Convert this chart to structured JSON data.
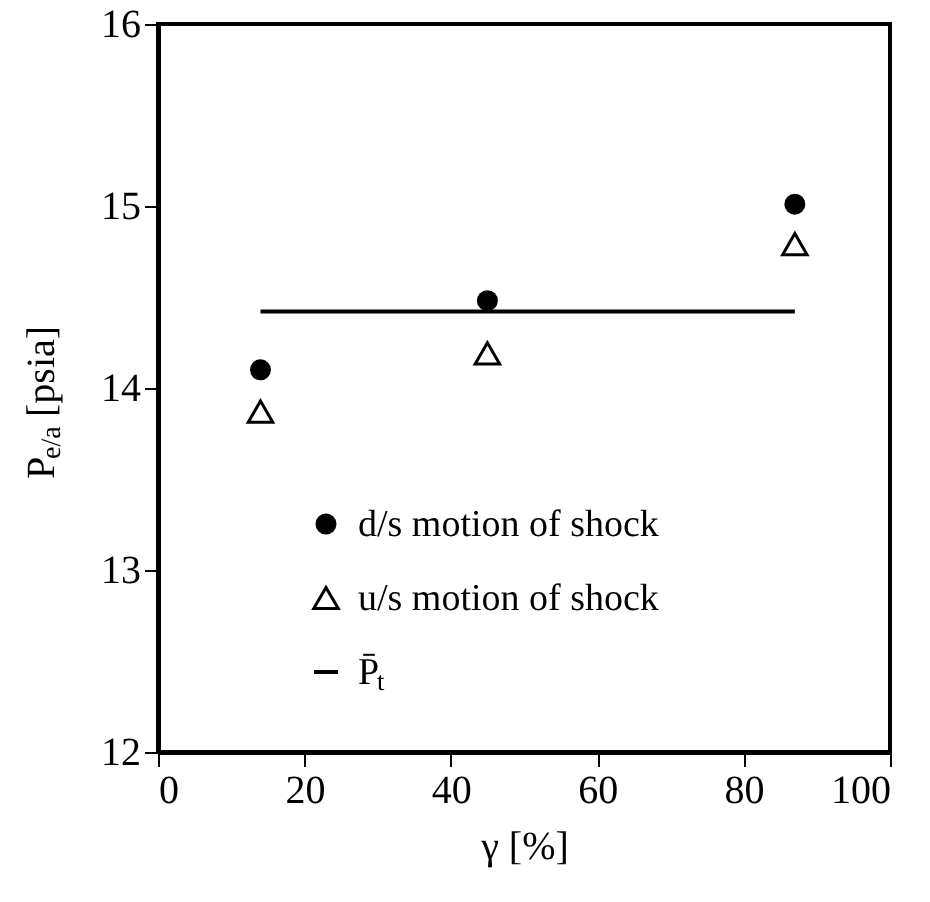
{
  "chart_data": {
    "type": "scatter",
    "xlabel": "γ [%]",
    "ylabel": "P$_{e/a}$[psia]",
    "xlim": [
      0,
      100
    ],
    "xticks": [
      0,
      20,
      40,
      60,
      80,
      100
    ],
    "ylim": [
      12,
      16
    ],
    "yticks": [
      12,
      13,
      14,
      15,
      16
    ],
    "legend": "bottom left",
    "series": [
      {
        "name": "d/s motion of shock",
        "marker": "circle",
        "color": "#000000",
        "x": [
          14,
          45,
          87
        ],
        "values": [
          14.1,
          14.48,
          15.01
        ]
      },
      {
        "name": "u/s motion of shock",
        "marker": "triangle",
        "color": "#000000",
        "x": [
          14,
          45,
          87
        ],
        "values": [
          13.87,
          14.19,
          14.79
        ]
      },
      {
        "name": "P̄$_{t}$",
        "type": "line",
        "color": "#000000",
        "x": [
          14,
          87
        ],
        "values": [
          14.42,
          14.42
        ]
      }
    ]
  }
}
